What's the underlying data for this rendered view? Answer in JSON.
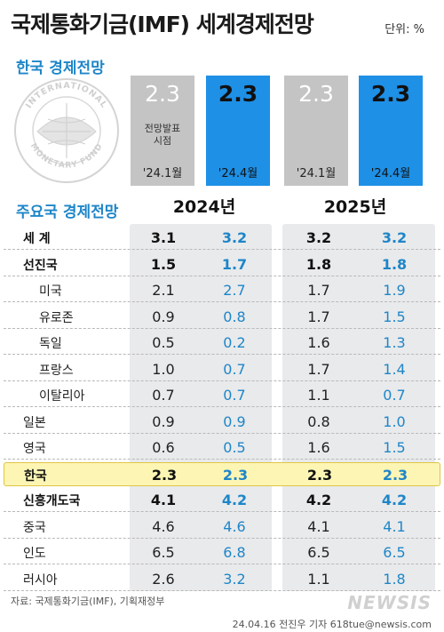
{
  "header": {
    "title": "국제통화기금(IMF) 세계경제전망",
    "unit": "단위: %"
  },
  "korea_outlook": {
    "title": "한국 경제전망",
    "bars": [
      {
        "value": "2.3",
        "date": "'24.1월",
        "note": "전망발표\n시점",
        "style": "gray"
      },
      {
        "value": "2.3",
        "date": "'24.4월",
        "note": "",
        "style": "blue"
      },
      {
        "value": "2.3",
        "date": "'24.1월",
        "note": "",
        "style": "gray"
      },
      {
        "value": "2.3",
        "date": "'24.4월",
        "note": "",
        "style": "blue"
      }
    ]
  },
  "table": {
    "title": "주요국 경제전망",
    "years": [
      "2024년",
      "2025년"
    ],
    "rows": [
      {
        "name": "세  계",
        "v2024_jan": "3.1",
        "v2024_apr": "3.2",
        "v2025_jan": "3.2",
        "v2025_apr": "3.2",
        "style": "bold",
        "indent": 0
      },
      {
        "name": "선진국",
        "v2024_jan": "1.5",
        "v2024_apr": "1.7",
        "v2025_jan": "1.8",
        "v2025_apr": "1.8",
        "style": "bold",
        "indent": 0
      },
      {
        "name": "미국",
        "v2024_jan": "2.1",
        "v2024_apr": "2.7",
        "v2025_jan": "1.7",
        "v2025_apr": "1.9",
        "style": "",
        "indent": 1
      },
      {
        "name": "유로존",
        "v2024_jan": "0.9",
        "v2024_apr": "0.8",
        "v2025_jan": "1.7",
        "v2025_apr": "1.5",
        "style": "",
        "indent": 1
      },
      {
        "name": "독일",
        "v2024_jan": "0.5",
        "v2024_apr": "0.2",
        "v2025_jan": "1.6",
        "v2025_apr": "1.3",
        "style": "",
        "indent": 1
      },
      {
        "name": "프랑스",
        "v2024_jan": "1.0",
        "v2024_apr": "0.7",
        "v2025_jan": "1.7",
        "v2025_apr": "1.4",
        "style": "",
        "indent": 1
      },
      {
        "name": "이탈리아",
        "v2024_jan": "0.7",
        "v2024_apr": "0.7",
        "v2025_jan": "1.1",
        "v2025_apr": "0.7",
        "style": "",
        "indent": 1
      },
      {
        "name": "일본",
        "v2024_jan": "0.9",
        "v2024_apr": "0.9",
        "v2025_jan": "0.8",
        "v2025_apr": "1.0",
        "style": "",
        "indent": 0
      },
      {
        "name": "영국",
        "v2024_jan": "0.6",
        "v2024_apr": "0.5",
        "v2025_jan": "1.6",
        "v2025_apr": "1.5",
        "style": "",
        "indent": 0
      },
      {
        "name": "한국",
        "v2024_jan": "2.3",
        "v2024_apr": "2.3",
        "v2025_jan": "2.3",
        "v2025_apr": "2.3",
        "style": "highlight",
        "indent": 0
      },
      {
        "name": "신흥개도국",
        "v2024_jan": "4.1",
        "v2024_apr": "4.2",
        "v2025_jan": "4.2",
        "v2025_apr": "4.2",
        "style": "bold",
        "indent": 0
      },
      {
        "name": "중국",
        "v2024_jan": "4.6",
        "v2024_apr": "4.6",
        "v2025_jan": "4.1",
        "v2025_apr": "4.1",
        "style": "",
        "indent": 0
      },
      {
        "name": "인도",
        "v2024_jan": "6.5",
        "v2024_apr": "6.8",
        "v2025_jan": "6.5",
        "v2025_apr": "6.5",
        "style": "",
        "indent": 0
      },
      {
        "name": "러시아",
        "v2024_jan": "2.6",
        "v2024_apr": "3.2",
        "v2025_jan": "1.1",
        "v2025_apr": "1.8",
        "style": "",
        "indent": 0
      }
    ]
  },
  "footer": {
    "source": "자료: 국제통화기금(IMF), 기획재정부",
    "credit": "24.04.16 전진우 기자 618tue@newsis.com",
    "logo": "NEWSIS"
  },
  "colors": {
    "accent_blue": "#1e90e6",
    "gray_bar": "#c4c4c4",
    "highlight": "#fdf5b4",
    "panel": "#e9eaec"
  },
  "chart_data": {
    "type": "table",
    "title": "국제통화기금(IMF) 세계경제전망",
    "unit": "%",
    "columns": [
      "2024년 '24.1월",
      "2024년 '24.4월",
      "2025년 '24.1월",
      "2025년 '24.4월"
    ],
    "korea_bars": {
      "categories": [
        "'24.1월",
        "'24.4월",
        "'24.1월",
        "'24.4월"
      ],
      "groups": [
        "2024년",
        "2025년"
      ],
      "values": [
        2.3,
        2.3,
        2.3,
        2.3
      ]
    },
    "rows": [
      {
        "name": "세 계",
        "values": [
          3.1,
          3.2,
          3.2,
          3.2
        ]
      },
      {
        "name": "선진국",
        "values": [
          1.5,
          1.7,
          1.8,
          1.8
        ]
      },
      {
        "name": "미국",
        "values": [
          2.1,
          2.7,
          1.7,
          1.9
        ]
      },
      {
        "name": "유로존",
        "values": [
          0.9,
          0.8,
          1.7,
          1.5
        ]
      },
      {
        "name": "독일",
        "values": [
          0.5,
          0.2,
          1.6,
          1.3
        ]
      },
      {
        "name": "프랑스",
        "values": [
          1.0,
          0.7,
          1.7,
          1.4
        ]
      },
      {
        "name": "이탈리아",
        "values": [
          0.7,
          0.7,
          1.1,
          0.7
        ]
      },
      {
        "name": "일본",
        "values": [
          0.9,
          0.9,
          0.8,
          1.0
        ]
      },
      {
        "name": "영국",
        "values": [
          0.6,
          0.5,
          1.6,
          1.5
        ]
      },
      {
        "name": "한국",
        "values": [
          2.3,
          2.3,
          2.3,
          2.3
        ]
      },
      {
        "name": "신흥개도국",
        "values": [
          4.1,
          4.2,
          4.2,
          4.2
        ]
      },
      {
        "name": "중국",
        "values": [
          4.6,
          4.6,
          4.1,
          4.1
        ]
      },
      {
        "name": "인도",
        "values": [
          6.5,
          6.8,
          6.5,
          6.5
        ]
      },
      {
        "name": "러시아",
        "values": [
          2.6,
          3.2,
          1.1,
          1.8
        ]
      }
    ]
  }
}
